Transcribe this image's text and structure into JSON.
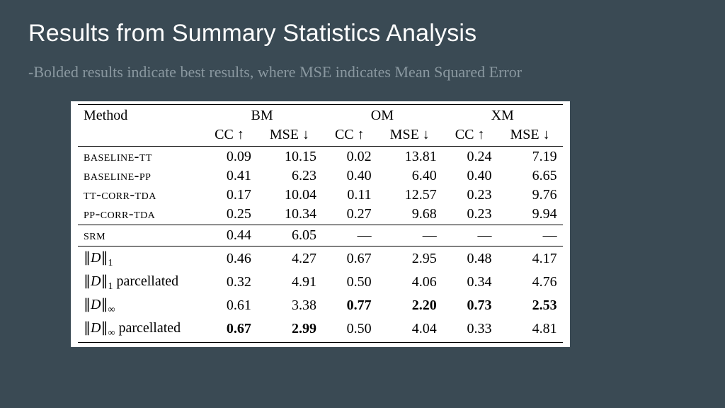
{
  "title": "Results from Summary Statistics Analysis",
  "subtitle": "-Bolded results indicate best results, where MSE indicates Mean Squared Error",
  "colors": {
    "background": "#3a4a54",
    "title": "#ffffff",
    "subtitle": "#8a98a0",
    "table_bg": "#ffffff",
    "rule": "#000000"
  },
  "fonts": {
    "title_family": "Helvetica Neue",
    "title_size_pt": 26,
    "title_weight": 300,
    "subtitle_family": "Georgia",
    "subtitle_size_pt": 17,
    "table_family": "Times New Roman",
    "table_size_pt": 15
  },
  "table": {
    "type": "table",
    "header_method": "Method",
    "groups": [
      "BM",
      "OM",
      "XM"
    ],
    "metrics": [
      "CC ↑",
      "MSE ↓",
      "CC ↑",
      "MSE ↓",
      "CC ↑",
      "MSE ↓"
    ],
    "sections": [
      {
        "rows": [
          {
            "label_html": "<span class='sc'>baseline-tt</span>",
            "cells": [
              "0.09",
              "10.15",
              "0.02",
              "13.81",
              "0.24",
              "7.19"
            ],
            "bold": [
              false,
              false,
              false,
              false,
              false,
              false
            ]
          },
          {
            "label_html": "<span class='sc'>baseline-pp</span>",
            "cells": [
              "0.41",
              "6.23",
              "0.40",
              "6.40",
              "0.40",
              "6.65"
            ],
            "bold": [
              false,
              false,
              false,
              false,
              false,
              false
            ]
          },
          {
            "label_html": "<span class='sc'>tt-corr-tda</span>",
            "cells": [
              "0.17",
              "10.04",
              "0.11",
              "12.57",
              "0.23",
              "9.76"
            ],
            "bold": [
              false,
              false,
              false,
              false,
              false,
              false
            ]
          },
          {
            "label_html": "<span class='sc'>pp-corr-tda</span>",
            "cells": [
              "0.25",
              "10.34",
              "0.27",
              "9.68",
              "0.23",
              "9.94"
            ],
            "bold": [
              false,
              false,
              false,
              false,
              false,
              false
            ]
          }
        ]
      },
      {
        "rows": [
          {
            "label_html": "<span class='sc'>srm</span>",
            "cells": [
              "0.44",
              "6.05",
              "—",
              "—",
              "—",
              "—"
            ],
            "bold": [
              false,
              false,
              false,
              false,
              false,
              false
            ]
          }
        ]
      },
      {
        "rows": [
          {
            "label_html": "<span class='norm'>∥<span class='scr'>D</span>∥<span class='sub'>1</span></span>",
            "cells": [
              "0.46",
              "4.27",
              "0.67",
              "2.95",
              "0.48",
              "4.17"
            ],
            "bold": [
              false,
              false,
              false,
              false,
              false,
              false
            ]
          },
          {
            "label_html": "<span class='norm'>∥<span class='scr'>D</span>∥<span class='sub'>1</span></span> parcellated",
            "cells": [
              "0.32",
              "4.91",
              "0.50",
              "4.06",
              "0.34",
              "4.76"
            ],
            "bold": [
              false,
              false,
              false,
              false,
              false,
              false
            ]
          },
          {
            "label_html": "<span class='norm'>∥<span class='scr'>D</span>∥<span class='sub'>∞</span></span>",
            "cells": [
              "0.61",
              "3.38",
              "0.77",
              "2.20",
              "0.73",
              "2.53"
            ],
            "bold": [
              false,
              false,
              true,
              true,
              true,
              true
            ]
          },
          {
            "label_html": "<span class='norm'>∥<span class='scr'>D</span>∥<span class='sub'>∞</span></span> parcellated",
            "cells": [
              "0.67",
              "2.99",
              "0.50",
              "4.04",
              "0.33",
              "4.81"
            ],
            "bold": [
              true,
              true,
              false,
              false,
              false,
              false
            ]
          }
        ]
      }
    ]
  }
}
